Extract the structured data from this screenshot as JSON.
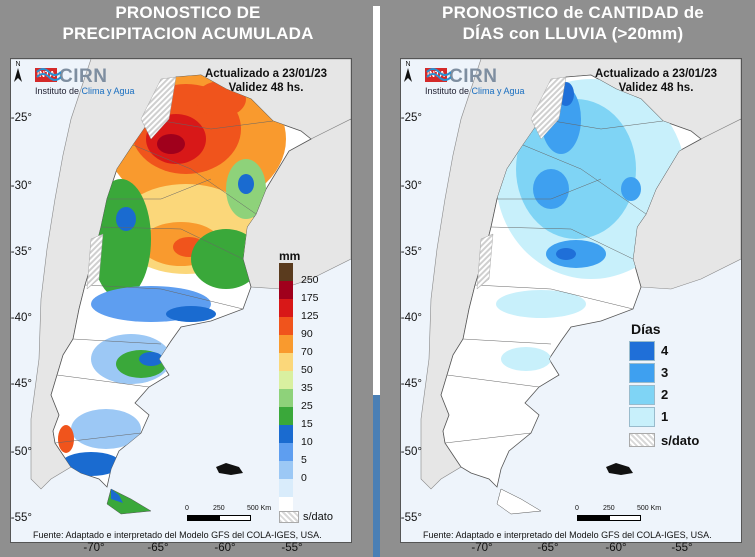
{
  "left_panel": {
    "title_line1": "PRONOSTICO DE",
    "title_line2": "PRECIPITACION ACUMULADA",
    "updated_line1": "Actualizado a 23/01/23",
    "updated_line2": "Validez 48 hs.",
    "legend_title": "mm",
    "legend_ticks": [
      "250",
      "175",
      "125",
      "90",
      "70",
      "50",
      "35",
      "25",
      "15",
      "10",
      "5",
      "0"
    ],
    "legend_colors": [
      "#5a3b1e",
      "#a0001c",
      "#d81818",
      "#f0541c",
      "#f99a2e",
      "#fbd77a",
      "#d9f0a0",
      "#8ed27a",
      "#3aa83a",
      "#1a6bd0",
      "#5e9ef0",
      "#9cc8f5",
      "#d9ecfb",
      "#ffffff"
    ],
    "no_data_label": "s/dato",
    "source": "Fuente: Adaptado e interpretado del Modelo GFS del COLA-IGES, USA."
  },
  "right_panel": {
    "title_line1": "PRONOSTICO de CANTIDAD de",
    "title_line2": "DÍAS con LLUVIA (>20mm)",
    "updated_line1": "Actualizado a 23/01/23",
    "updated_line2": "Validez 48 hs.",
    "legend_title": "Días",
    "legend_items": [
      {
        "label": "4",
        "color": "#1f6fd8"
      },
      {
        "label": "3",
        "color": "#3ea0f0"
      },
      {
        "label": "2",
        "color": "#7fd4f5"
      },
      {
        "label": "1",
        "color": "#c8f0fb"
      }
    ],
    "no_data_label": "s/dato",
    "source": "Fuente: Adaptado e interpretado del Modelo GFS del COLA-IGES, USA."
  },
  "logo": {
    "inta": "INTA",
    "cirn": "CIRN",
    "subtitle_plain": "Instituto de ",
    "subtitle_highlight": "Clima y Agua"
  },
  "scale": {
    "zero": "0",
    "mid": "250",
    "end": "500 Km"
  },
  "north_label": "N",
  "lat_labels": [
    "-25°",
    "-30°",
    "-35°",
    "-40°",
    "-45°",
    "-50°",
    "-55°"
  ],
  "lon_labels": [
    "-70°",
    "-65°",
    "-60°",
    "-55°"
  ],
  "colors": {
    "background": "#8f8f8f",
    "ocean": "#eef4fb",
    "neighbor_land": "#e6e6e6",
    "divider_white": "#ffffff",
    "divider_blue": "#4a7fb5"
  }
}
